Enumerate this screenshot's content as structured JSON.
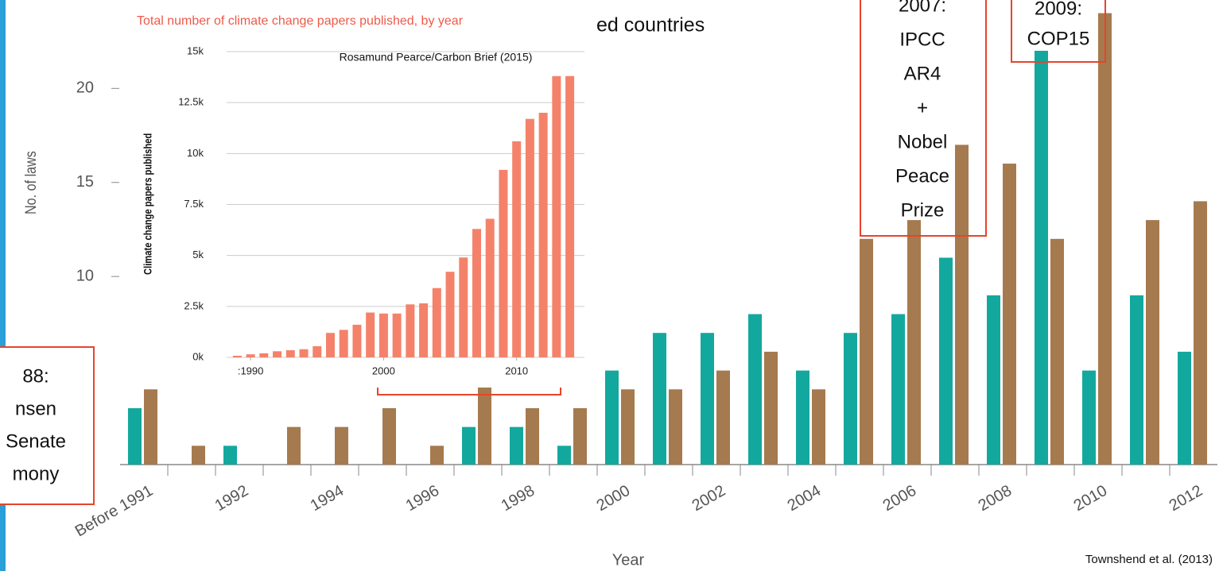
{
  "chart_data": [
    {
      "type": "bar",
      "title": "ed countries",
      "x_label": "Year",
      "y_label": "No. of laws",
      "source": "Townshend et al. (2013)",
      "categories": [
        "Before 1991",
        null,
        "1992",
        null,
        "1994",
        null,
        "1996",
        null,
        "1998",
        null,
        "2000",
        null,
        "2002",
        null,
        "2004",
        null,
        "2006",
        null,
        "2008",
        null,
        "2010",
        null,
        "2012"
      ],
      "series": [
        {
          "color": "#13a89e",
          "values": [
            3,
            0,
            1,
            0,
            0,
            0,
            0,
            2,
            2,
            1,
            5,
            7,
            7,
            8,
            5,
            7,
            8,
            11,
            9,
            22,
            5,
            9,
            6
          ]
        },
        {
          "color": "#a57a4e",
          "values": [
            4,
            1,
            0,
            2,
            2,
            3,
            1,
            5,
            3,
            3,
            4,
            4,
            5,
            6,
            4,
            12,
            13,
            17,
            16,
            12,
            24,
            13,
            14
          ]
        }
      ],
      "ylim": [
        0,
        24.7
      ],
      "yticks": [
        10,
        15,
        20
      ],
      "annotations": [
        {
          "lines": [
            "2007:",
            "IPCC",
            "AR4",
            "+",
            "Nobel",
            "Peace",
            "Prize"
          ]
        },
        {
          "lines": [
            "2009:",
            "COP15"
          ]
        },
        {
          "lines": [
            "88:",
            "nsen",
            "Senate",
            "mony"
          ]
        }
      ]
    },
    {
      "type": "bar",
      "title": "Total number of climate change papers published, by year",
      "source": "Rosamund Pearce/Carbon Brief (2015)",
      "y_label": "Climate change papers published",
      "color": "#f4826a",
      "grid": true,
      "x": [
        1989,
        1990,
        1991,
        1992,
        1993,
        1994,
        1995,
        1996,
        1997,
        1998,
        1999,
        2000,
        2001,
        2002,
        2003,
        2004,
        2005,
        2006,
        2007,
        2008,
        2009,
        2010,
        2011,
        2012,
        2013,
        2014
      ],
      "values": [
        80,
        150,
        200,
        300,
        350,
        400,
        550,
        1200,
        1350,
        1600,
        2200,
        2150,
        2150,
        2600,
        2650,
        3400,
        4200,
        4900,
        6300,
        6800,
        9200,
        10600,
        11700,
        12000,
        13800,
        13800
      ],
      "xlim": [
        1988.2,
        2015.1
      ],
      "xticks": [
        {
          "value": 1990,
          "label": ":1990"
        },
        2000,
        2010
      ],
      "ylim": [
        0,
        15000
      ],
      "yticks": [
        {
          "value": 0,
          "label": "0k"
        },
        {
          "value": 2500,
          "label": "2.5k"
        },
        {
          "value": 5000,
          "label": "5k"
        },
        {
          "value": 7500,
          "label": "7.5k"
        },
        {
          "value": 10000,
          "label": "10k"
        },
        {
          "value": 12500,
          "label": "12.5k"
        },
        {
          "value": 15000,
          "label": "15k"
        }
      ]
    }
  ]
}
